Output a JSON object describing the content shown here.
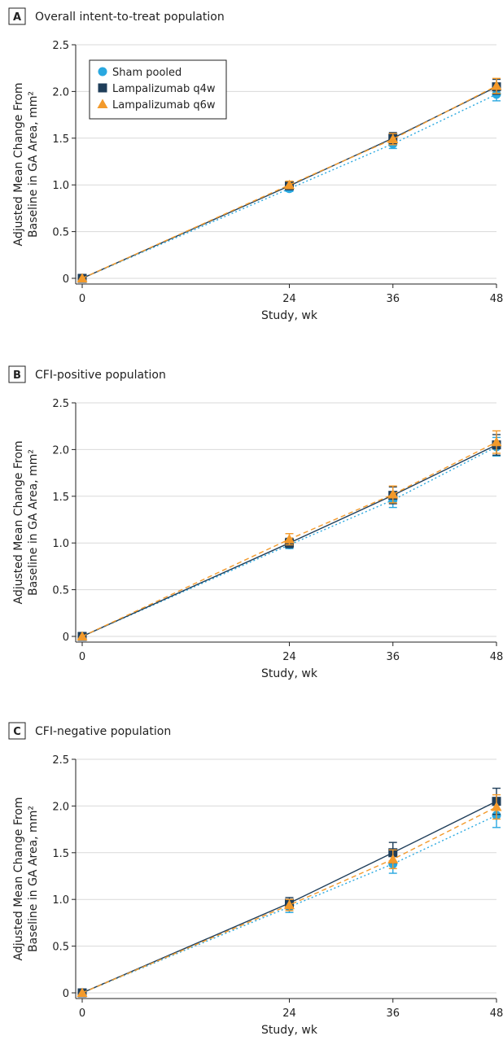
{
  "colors": {
    "sham": "#29a8e0",
    "q4w": "#1f3e5a",
    "q6w": "#f39a2b",
    "grid": "#d9d9d9",
    "axis": "#222222"
  },
  "legend": {
    "entries": [
      {
        "key": "sham",
        "label": "Sham pooled",
        "marker": "circle"
      },
      {
        "key": "q4w",
        "label": "Lampalizumab q4w",
        "marker": "square"
      },
      {
        "key": "q6w",
        "label": "Lampalizumab q6w",
        "marker": "triangle"
      }
    ]
  },
  "chart_data": [
    {
      "type": "line",
      "panel_letter": "A",
      "title": "Overall intent-to-treat population",
      "xlabel": "Study, wk",
      "ylabel": [
        "Adjusted Mean Change From",
        "Baseline in GA Area, mm²"
      ],
      "x": [
        0,
        24,
        36,
        48
      ],
      "x_ticks": [
        "0",
        "24",
        "36",
        "48"
      ],
      "y_ticks": [
        "0",
        "0.5",
        "1.0",
        "1.5",
        "2.0",
        "2.5"
      ],
      "xlim": [
        0,
        48
      ],
      "ylim": [
        0,
        2.5
      ],
      "grid": true,
      "legend_position": "top-left",
      "series": [
        {
          "key": "sham",
          "name": "Sham pooled",
          "values": [
            0,
            0.96,
            1.44,
            1.97
          ],
          "err": [
            0,
            0.03,
            0.05,
            0.07
          ]
        },
        {
          "key": "q4w",
          "name": "Lampalizumab q4w",
          "values": [
            0,
            0.99,
            1.5,
            2.05
          ],
          "err": [
            0,
            0.04,
            0.06,
            0.08
          ]
        },
        {
          "key": "q6w",
          "name": "Lampalizumab q6w",
          "values": [
            0,
            1.0,
            1.49,
            2.06
          ],
          "err": [
            0,
            0.04,
            0.06,
            0.08
          ]
        }
      ]
    },
    {
      "type": "line",
      "panel_letter": "B",
      "title": "CFI-positive population",
      "xlabel": "Study, wk",
      "ylabel": [
        "Adjusted Mean Change From",
        "Baseline in GA Area, mm²"
      ],
      "x": [
        0,
        24,
        36,
        48
      ],
      "x_ticks": [
        "0",
        "24",
        "36",
        "48"
      ],
      "y_ticks": [
        "0",
        "0.5",
        "1.0",
        "1.5",
        "2.0",
        "2.5"
      ],
      "xlim": [
        0,
        48
      ],
      "ylim": [
        0,
        2.5
      ],
      "grid": true,
      "series": [
        {
          "key": "sham",
          "name": "Sham pooled",
          "values": [
            0,
            0.98,
            1.46,
            2.03
          ],
          "err": [
            0,
            0.04,
            0.08,
            0.1
          ]
        },
        {
          "key": "q4w",
          "name": "Lampalizumab q4w",
          "values": [
            0,
            1.0,
            1.51,
            2.05
          ],
          "err": [
            0,
            0.05,
            0.09,
            0.11
          ]
        },
        {
          "key": "q6w",
          "name": "Lampalizumab q6w",
          "values": [
            0,
            1.04,
            1.52,
            2.08
          ],
          "err": [
            0,
            0.06,
            0.09,
            0.12
          ]
        }
      ]
    },
    {
      "type": "line",
      "panel_letter": "C",
      "title": "CFI-negative population",
      "xlabel": "Study, wk",
      "ylabel": [
        "Adjusted Mean Change From",
        "Baseline in GA Area, mm²"
      ],
      "x": [
        0,
        24,
        36,
        48
      ],
      "x_ticks": [
        "0",
        "24",
        "36",
        "48"
      ],
      "y_ticks": [
        "0",
        "0.5",
        "1.0",
        "1.5",
        "2.0",
        "2.5"
      ],
      "xlim": [
        0,
        48
      ],
      "ylim": [
        0,
        2.5
      ],
      "grid": true,
      "series": [
        {
          "key": "sham",
          "name": "Sham pooled",
          "values": [
            0,
            0.92,
            1.38,
            1.9
          ],
          "err": [
            0,
            0.06,
            0.1,
            0.13
          ]
        },
        {
          "key": "q4w",
          "name": "Lampalizumab q4w",
          "values": [
            0,
            0.96,
            1.5,
            2.05
          ],
          "err": [
            0,
            0.06,
            0.11,
            0.14
          ]
        },
        {
          "key": "q6w",
          "name": "Lampalizumab q6w",
          "values": [
            0,
            0.94,
            1.43,
            1.99
          ],
          "err": [
            0,
            0.06,
            0.1,
            0.13
          ]
        }
      ]
    }
  ]
}
